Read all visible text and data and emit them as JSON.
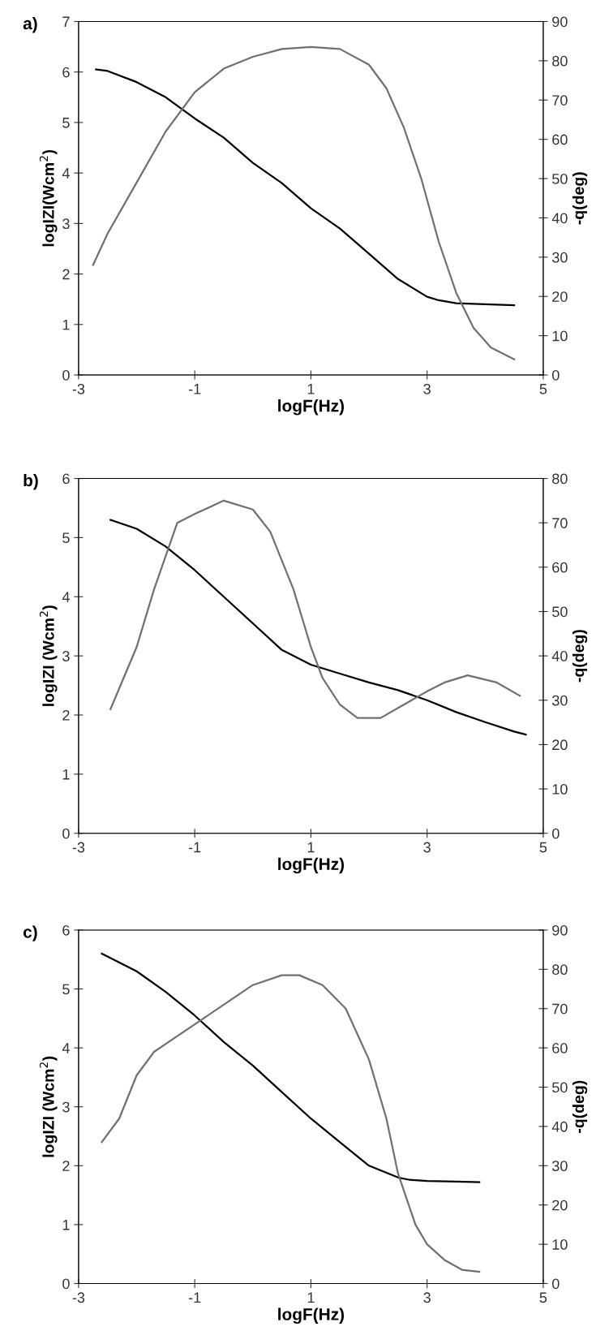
{
  "chart_data": [
    {
      "type": "line",
      "title": "a)",
      "xlabel": "logF(Hz)",
      "ylabel": "logIZI(Wcm$^{2}$)",
      "y2label": "-q(deg)",
      "xlim": [
        -3,
        5
      ],
      "xticks": [
        -3,
        -1,
        1,
        3,
        5
      ],
      "ylim": [
        0,
        7
      ],
      "yticks": [
        0,
        1,
        2,
        3,
        4,
        5,
        6,
        7
      ],
      "y2lim": [
        0,
        90
      ],
      "y2ticks": [
        0,
        10,
        20,
        30,
        40,
        50,
        60,
        70,
        80,
        90
      ],
      "grid": false,
      "legend": false,
      "series": [
        {
          "color": "#000000",
          "x": [
            -2.7,
            -2.5,
            -2,
            -1.5,
            -1,
            -0.5,
            0,
            0.5,
            1,
            1.5,
            2,
            2.5,
            3,
            3.2,
            3.5,
            4,
            4.5
          ],
          "values": [
            6.05,
            6.02,
            5.8,
            5.5,
            5.08,
            4.7,
            4.2,
            3.8,
            3.3,
            2.9,
            2.4,
            1.9,
            1.55,
            1.48,
            1.42,
            1.4,
            1.38
          ]
        },
        {
          "color": "#707070",
          "axis": "y2",
          "x": [
            -2.75,
            -2.5,
            -2,
            -1.5,
            -1,
            -0.5,
            0,
            0.5,
            1,
            1.5,
            2,
            2.3,
            2.6,
            2.9,
            3.2,
            3.5,
            3.8,
            4.1,
            4.5
          ],
          "values": [
            28,
            36,
            49,
            62,
            72,
            78,
            81,
            83,
            83.5,
            83,
            79,
            73,
            63,
            50,
            34,
            21,
            12,
            7,
            4
          ]
        }
      ]
    },
    {
      "type": "line",
      "title": "b)",
      "xlabel": "logF(Hz)",
      "ylabel": "logIZI (Wcm$^{2}$)",
      "y2label": "-q(deg)",
      "xlim": [
        -3,
        5
      ],
      "xticks": [
        -3,
        -1,
        1,
        3,
        5
      ],
      "ylim": [
        0,
        6
      ],
      "yticks": [
        0,
        1,
        2,
        3,
        4,
        5,
        6
      ],
      "y2lim": [
        0,
        80
      ],
      "y2ticks": [
        0,
        10,
        20,
        30,
        40,
        50,
        60,
        70,
        80
      ],
      "grid": false,
      "legend": false,
      "series": [
        {
          "color": "#000000",
          "x": [
            -2.45,
            -2,
            -1.5,
            -1,
            -0.5,
            0,
            0.5,
            1,
            1.5,
            2,
            2.5,
            3,
            3.5,
            4,
            4.5,
            4.7
          ],
          "values": [
            5.3,
            5.15,
            4.85,
            4.45,
            4.0,
            3.55,
            3.1,
            2.85,
            2.7,
            2.55,
            2.42,
            2.25,
            2.05,
            1.88,
            1.72,
            1.67
          ]
        },
        {
          "color": "#707070",
          "axis": "y2",
          "x": [
            -2.45,
            -2,
            -1.7,
            -1.3,
            -1,
            -0.5,
            0,
            0.3,
            0.7,
            1,
            1.2,
            1.5,
            1.8,
            2.2,
            2.6,
            3,
            3.3,
            3.7,
            4.2,
            4.6
          ],
          "values": [
            28,
            42,
            55,
            70,
            72,
            75,
            73,
            68,
            55,
            42,
            35,
            29,
            26,
            26,
            29,
            32,
            34,
            35.6,
            34,
            31
          ]
        }
      ]
    },
    {
      "type": "line",
      "title": "c)",
      "xlabel": "logF(Hz)",
      "ylabel": "logIZI (Wcm$^{2}$)",
      "y2label": "-q(deg)",
      "xlim": [
        -3,
        5
      ],
      "xticks": [
        -3,
        -1,
        1,
        3,
        5
      ],
      "ylim": [
        0,
        6
      ],
      "yticks": [
        0,
        1,
        2,
        3,
        4,
        5,
        6
      ],
      "y2lim": [
        0,
        90
      ],
      "y2ticks": [
        0,
        10,
        20,
        30,
        40,
        50,
        60,
        70,
        80,
        90
      ],
      "grid": false,
      "legend": false,
      "series": [
        {
          "color": "#000000",
          "x": [
            -2.6,
            -2,
            -1.5,
            -1,
            -0.5,
            0,
            0.5,
            1,
            1.5,
            2,
            2.5,
            2.7,
            3,
            3.5,
            3.9
          ],
          "values": [
            5.6,
            5.3,
            4.95,
            4.55,
            4.1,
            3.7,
            3.25,
            2.8,
            2.4,
            2.0,
            1.8,
            1.76,
            1.74,
            1.73,
            1.72
          ]
        },
        {
          "color": "#707070",
          "axis": "y2",
          "x": [
            -2.6,
            -2.3,
            -2,
            -1.7,
            -1.3,
            -1,
            -0.5,
            0,
            0.5,
            0.8,
            1.2,
            1.6,
            2,
            2.3,
            2.5,
            2.8,
            3,
            3.3,
            3.6,
            3.9
          ],
          "values": [
            36,
            42,
            53,
            59,
            63,
            66,
            71,
            76,
            78.5,
            78.5,
            76,
            70,
            57,
            42,
            28,
            15,
            10,
            6,
            3.5,
            3
          ]
        }
      ]
    }
  ]
}
